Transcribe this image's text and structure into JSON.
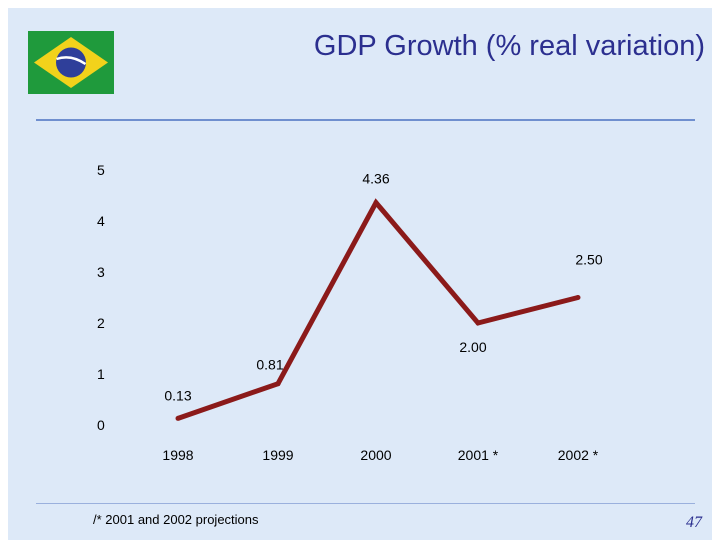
{
  "header": {
    "title": "GDP Growth (% real variation)"
  },
  "flag": {
    "name": "Brazil flag",
    "green": "#1f9a3c",
    "yellow": "#f2d21b",
    "blue": "#2f3f9a"
  },
  "chart_data": {
    "type": "line",
    "title": "GDP Growth (% real variation)",
    "xlabel": "",
    "ylabel": "",
    "categories": [
      "1998",
      "1999",
      "2000",
      "2001 *",
      "2002 *"
    ],
    "series": [
      {
        "name": "GDP growth",
        "values": [
          0.13,
          0.81,
          4.36,
          2.0,
          2.5
        ]
      }
    ],
    "data_labels": [
      "0.13",
      "0.81",
      "4.36",
      "2.00",
      "2.50"
    ],
    "yticks": [
      "0",
      "1",
      "2",
      "3",
      "4",
      "5"
    ],
    "ylim": [
      0,
      5
    ],
    "line_color": "#8b1a1a",
    "grid": false,
    "legend": "none"
  },
  "footnote": "/* 2001 and 2002 projections",
  "page_number": "47"
}
